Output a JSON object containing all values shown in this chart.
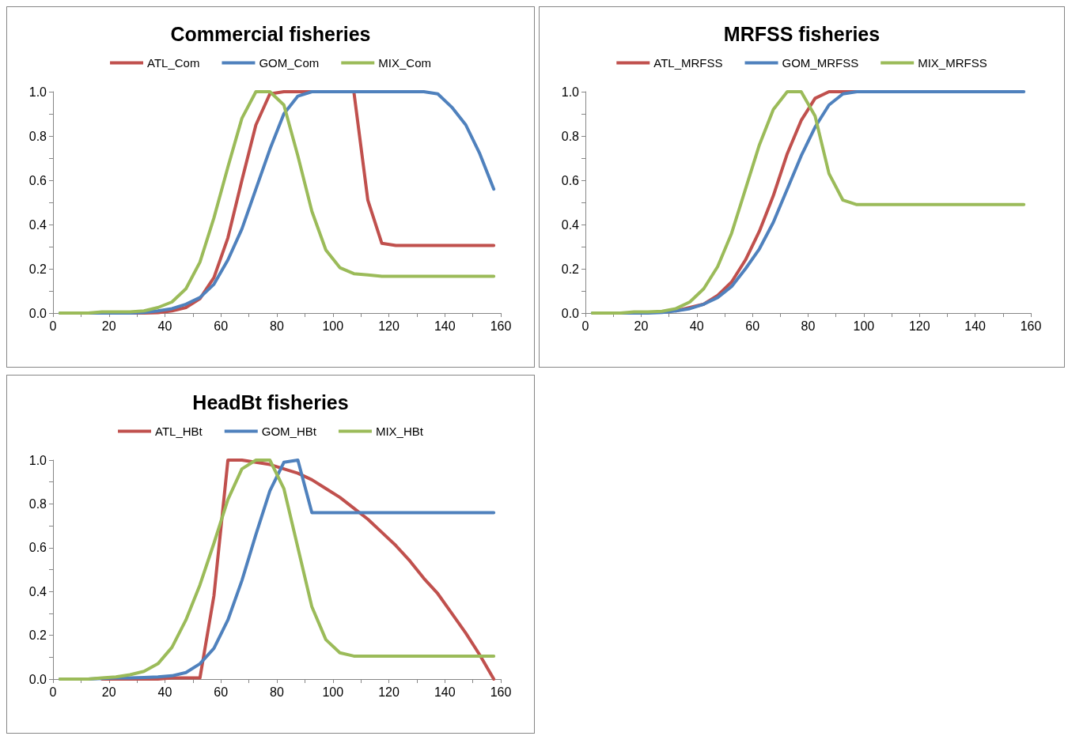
{
  "chart_data": [
    {
      "type": "line",
      "title": "Commercial fisheries",
      "legend": "top",
      "marker": "none",
      "line_style": "solid",
      "grid": false,
      "x": [
        2.5,
        7.5,
        12.5,
        17.5,
        22.5,
        27.5,
        32.5,
        37.5,
        42.5,
        47.5,
        52.5,
        57.5,
        62.5,
        67.5,
        72.5,
        77.5,
        82.5,
        87.5,
        92.5,
        97.5,
        102.5,
        107.5,
        112.5,
        117.5,
        122.5,
        127.5,
        132.5,
        137.5,
        142.5,
        147.5,
        152.5,
        157.5
      ],
      "xlim": [
        0,
        160
      ],
      "xticks": [
        0,
        {
          "value": 10,
          "label": null
        },
        20,
        {
          "value": 30,
          "label": null
        },
        40,
        {
          "value": 50,
          "label": null
        },
        60,
        {
          "value": 70,
          "label": null
        },
        80,
        {
          "value": 90,
          "label": null
        },
        100,
        {
          "value": 110,
          "label": null
        },
        120,
        {
          "value": 130,
          "label": null
        },
        140,
        {
          "value": 150,
          "label": null
        },
        160
      ],
      "ylim": [
        0,
        1
      ],
      "yticks": [
        {
          "value": 0,
          "label": "0.0"
        },
        {
          "value": 0.1,
          "label": null
        },
        {
          "value": 0.2,
          "label": "0.2"
        },
        {
          "value": 0.3,
          "label": null
        },
        {
          "value": 0.4,
          "label": "0.4"
        },
        {
          "value": 0.5,
          "label": null
        },
        {
          "value": 0.6,
          "label": "0.6"
        },
        {
          "value": 0.7,
          "label": null
        },
        {
          "value": 0.8,
          "label": "0.8"
        },
        {
          "value": 0.9,
          "label": null
        },
        {
          "value": 1,
          "label": "1.0"
        }
      ],
      "series": [
        {
          "name": "ATL_Com",
          "color": "#c0504d",
          "values": [
            null,
            null,
            null,
            null,
            null,
            0,
            0,
            0.002,
            0.01,
            0.025,
            0.065,
            0.16,
            0.34,
            0.6,
            0.85,
            0.99,
            1,
            1,
            1,
            null,
            null,
            1,
            0.51,
            0.315,
            0.305,
            0.305,
            0.305,
            0.305,
            0.305,
            0.305,
            0.305,
            0.305
          ]
        },
        {
          "name": "GOM_Com",
          "color": "#4f81bd",
          "values": [
            0,
            0,
            0,
            0,
            0,
            0,
            0.003,
            0.01,
            0.02,
            0.04,
            0.07,
            0.13,
            0.24,
            0.38,
            0.56,
            0.74,
            0.9,
            0.98,
            1,
            1,
            1,
            1,
            1,
            1,
            1,
            1,
            1,
            0.99,
            0.93,
            0.85,
            0.72,
            0.56
          ]
        },
        {
          "name": "MIX_Com",
          "color": "#9bbb59",
          "values": [
            0,
            0,
            0,
            0.005,
            0.005,
            0.005,
            0.01,
            0.025,
            0.05,
            0.11,
            0.23,
            0.43,
            0.66,
            0.88,
            1,
            1,
            0.94,
            0.71,
            0.46,
            0.285,
            0.205,
            0.178,
            0.172,
            0.166,
            0.166,
            0.166,
            0.166,
            0.166,
            0.166,
            0.166,
            0.166,
            0.166
          ]
        }
      ]
    },
    {
      "type": "line",
      "title": "MRFSS fisheries",
      "legend": "top",
      "marker": "none",
      "line_style": "solid",
      "grid": false,
      "x": [
        2.5,
        7.5,
        12.5,
        17.5,
        22.5,
        27.5,
        32.5,
        37.5,
        42.5,
        47.5,
        52.5,
        57.5,
        62.5,
        67.5,
        72.5,
        77.5,
        82.5,
        87.5,
        92.5,
        97.5,
        102.5,
        107.5,
        112.5,
        117.5,
        122.5,
        127.5,
        132.5,
        137.5,
        142.5,
        147.5,
        152.5,
        157.5
      ],
      "xlim": [
        0,
        160
      ],
      "xticks": [
        0,
        {
          "value": 10,
          "label": null
        },
        20,
        {
          "value": 30,
          "label": null
        },
        40,
        {
          "value": 50,
          "label": null
        },
        60,
        {
          "value": 70,
          "label": null
        },
        80,
        {
          "value": 90,
          "label": null
        },
        100,
        {
          "value": 110,
          "label": null
        },
        120,
        {
          "value": 130,
          "label": null
        },
        140,
        {
          "value": 150,
          "label": null
        },
        160
      ],
      "ylim": [
        0,
        1
      ],
      "yticks": [
        {
          "value": 0,
          "label": "0.0"
        },
        {
          "value": 0.1,
          "label": null
        },
        {
          "value": 0.2,
          "label": "0.2"
        },
        {
          "value": 0.3,
          "label": null
        },
        {
          "value": 0.4,
          "label": "0.4"
        },
        {
          "value": 0.5,
          "label": null
        },
        {
          "value": 0.6,
          "label": "0.6"
        },
        {
          "value": 0.7,
          "label": null
        },
        {
          "value": 0.8,
          "label": "0.8"
        },
        {
          "value": 0.9,
          "label": null
        },
        {
          "value": 1,
          "label": "1.0"
        }
      ],
      "series": [
        {
          "name": "ATL_MRFSS",
          "color": "#c0504d",
          "values": [
            null,
            null,
            null,
            null,
            null,
            null,
            0.01,
            0.025,
            0.04,
            0.08,
            0.14,
            0.24,
            0.37,
            0.53,
            0.72,
            0.87,
            0.97,
            1,
            1,
            1,
            null,
            null,
            null,
            null,
            null,
            null,
            null,
            null,
            null,
            null,
            null,
            null
          ]
        },
        {
          "name": "GOM_MRFSS",
          "color": "#4f81bd",
          "values": [
            0,
            0,
            0,
            0,
            0,
            0.003,
            0.01,
            0.02,
            0.04,
            0.07,
            0.12,
            0.2,
            0.29,
            0.41,
            0.56,
            0.71,
            0.84,
            0.94,
            0.99,
            1,
            1,
            1,
            1,
            1,
            1,
            1,
            1,
            1,
            1,
            1,
            1,
            1
          ]
        },
        {
          "name": "MIX_MRFSS",
          "color": "#9bbb59",
          "values": [
            0,
            0,
            0,
            0.005,
            0.005,
            0.008,
            0.02,
            0.05,
            0.11,
            0.21,
            0.36,
            0.56,
            0.76,
            0.92,
            1,
            1,
            0.89,
            0.63,
            0.51,
            0.49,
            0.49,
            0.49,
            0.49,
            0.49,
            0.49,
            0.49,
            0.49,
            0.49,
            0.49,
            0.49,
            0.49,
            0.49
          ]
        }
      ]
    },
    {
      "type": "line",
      "title": "HeadBt fisheries",
      "legend": "top",
      "marker": "none",
      "line_style": "solid",
      "grid": false,
      "x": [
        2.5,
        7.5,
        12.5,
        17.5,
        22.5,
        27.5,
        32.5,
        37.5,
        42.5,
        47.5,
        52.5,
        57.5,
        62.5,
        67.5,
        72.5,
        77.5,
        82.5,
        87.5,
        92.5,
        97.5,
        102.5,
        107.5,
        112.5,
        117.5,
        122.5,
        127.5,
        132.5,
        137.5,
        142.5,
        147.5,
        152.5,
        157.5
      ],
      "xlim": [
        0,
        160
      ],
      "xticks": [
        0,
        {
          "value": 10,
          "label": null
        },
        20,
        {
          "value": 30,
          "label": null
        },
        40,
        {
          "value": 50,
          "label": null
        },
        60,
        {
          "value": 70,
          "label": null
        },
        80,
        {
          "value": 90,
          "label": null
        },
        100,
        {
          "value": 110,
          "label": null
        },
        120,
        {
          "value": 130,
          "label": null
        },
        140,
        {
          "value": 150,
          "label": null
        },
        160
      ],
      "ylim": [
        0,
        1
      ],
      "yticks": [
        {
          "value": 0,
          "label": "0.0"
        },
        {
          "value": 0.1,
          "label": null
        },
        {
          "value": 0.2,
          "label": "0.2"
        },
        {
          "value": 0.3,
          "label": null
        },
        {
          "value": 0.4,
          "label": "0.4"
        },
        {
          "value": 0.5,
          "label": null
        },
        {
          "value": 0.6,
          "label": "0.6"
        },
        {
          "value": 0.7,
          "label": null
        },
        {
          "value": 0.8,
          "label": "0.8"
        },
        {
          "value": 0.9,
          "label": null
        },
        {
          "value": 1,
          "label": "1.0"
        }
      ],
      "series": [
        {
          "name": "ATL_HBt",
          "color": "#c0504d",
          "values": [
            null,
            null,
            null,
            0,
            0,
            0,
            0,
            0,
            0.005,
            0.005,
            0.005,
            0.38,
            1,
            1,
            0.99,
            0.98,
            0.96,
            0.94,
            0.91,
            0.87,
            0.83,
            0.78,
            0.73,
            0.67,
            0.61,
            0.54,
            0.46,
            0.39,
            0.3,
            0.21,
            0.11,
            0
          ]
        },
        {
          "name": "GOM_HBt",
          "color": "#4f81bd",
          "values": [
            0,
            0,
            0,
            0.003,
            0.005,
            0.005,
            0.007,
            0.01,
            0.015,
            0.03,
            0.07,
            0.14,
            0.27,
            0.45,
            0.66,
            0.86,
            0.99,
            1,
            0.76,
            0.76,
            0.76,
            0.76,
            0.76,
            0.76,
            0.76,
            0.76,
            0.76,
            0.76,
            0.76,
            0.76,
            0.76,
            0.76
          ]
        },
        {
          "name": "MIX_HBt",
          "color": "#9bbb59",
          "values": [
            0,
            0,
            0,
            0.005,
            0.01,
            0.02,
            0.035,
            0.07,
            0.145,
            0.27,
            0.43,
            0.62,
            0.82,
            0.96,
            1,
            1,
            0.87,
            0.6,
            0.33,
            0.18,
            0.12,
            0.105,
            0.105,
            0.105,
            0.105,
            0.105,
            0.105,
            0.105,
            0.105,
            0.105,
            0.105,
            0.105
          ]
        }
      ]
    }
  ]
}
